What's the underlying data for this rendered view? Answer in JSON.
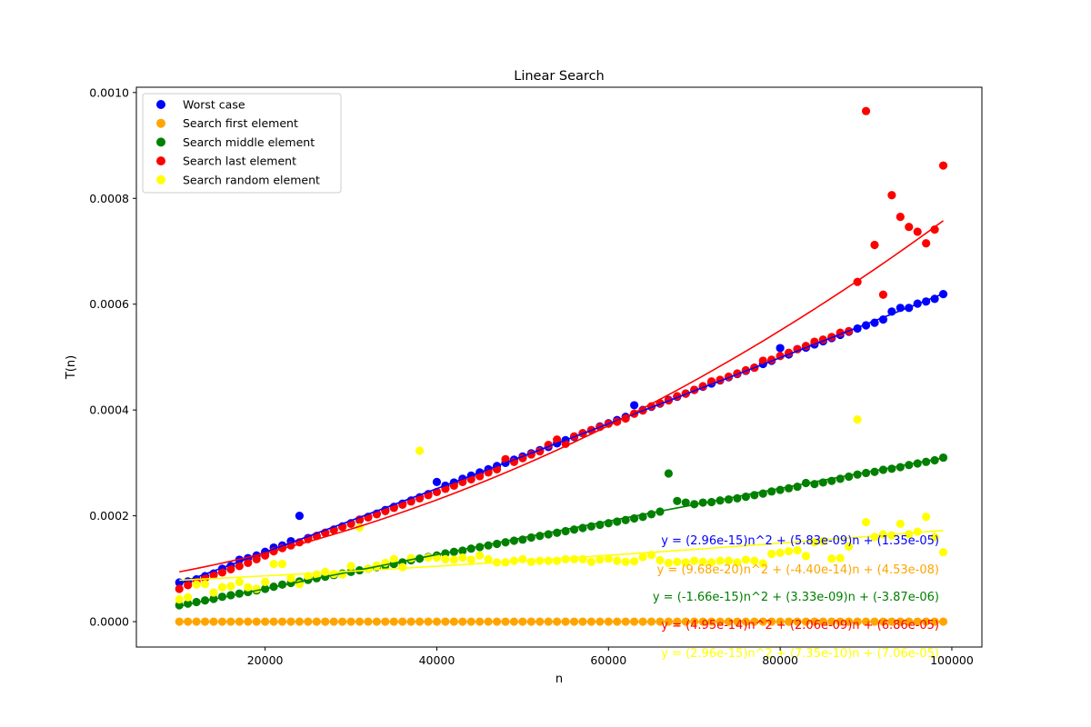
{
  "chart_data": {
    "type": "scatter",
    "title": "Linear Search",
    "xlabel": "n",
    "ylabel": "T(n)",
    "xlim": [
      5000,
      103500
    ],
    "ylim": [
      -4.8e-05,
      0.00101
    ],
    "xticks": [
      20000,
      40000,
      60000,
      80000,
      100000
    ],
    "yticks": [
      0.0,
      0.0002,
      0.0004,
      0.0006,
      0.0008,
      0.001
    ],
    "xtick_labels": [
      "20000",
      "40000",
      "60000",
      "80000",
      "100000"
    ],
    "ytick_labels": [
      "0.0000",
      "0.0002",
      "0.0004",
      "0.0006",
      "0.0008",
      "0.0010"
    ],
    "grid": false,
    "legend_position": "top-left",
    "x": [
      10000,
      11000,
      12000,
      13000,
      14000,
      15000,
      16000,
      17000,
      18000,
      19000,
      20000,
      21000,
      22000,
      23000,
      24000,
      25000,
      26000,
      27000,
      28000,
      29000,
      30000,
      31000,
      32000,
      33000,
      34000,
      35000,
      36000,
      37000,
      38000,
      39000,
      40000,
      41000,
      42000,
      43000,
      44000,
      45000,
      46000,
      47000,
      48000,
      49000,
      50000,
      51000,
      52000,
      53000,
      54000,
      55000,
      56000,
      57000,
      58000,
      59000,
      60000,
      61000,
      62000,
      63000,
      64000,
      65000,
      66000,
      67000,
      68000,
      69000,
      70000,
      71000,
      72000,
      73000,
      74000,
      75000,
      76000,
      77000,
      78000,
      79000,
      80000,
      81000,
      82000,
      83000,
      84000,
      85000,
      86000,
      87000,
      88000,
      89000,
      90000,
      91000,
      92000,
      93000,
      94000,
      95000,
      96000,
      97000,
      98000,
      99000
    ],
    "series": [
      {
        "name": "Worst case",
        "color": "#0000ff",
        "values": [
          7.4e-05,
          7.6e-05,
          8e-05,
          8.6e-05,
          9.1e-05,
          0.0001,
          0.000105,
          0.000117,
          0.00012,
          0.000125,
          0.000132,
          0.00014,
          0.000144,
          0.000152,
          0.0002,
          0.000158,
          0.000162,
          0.000168,
          0.000174,
          0.00018,
          0.000186,
          0.000192,
          0.000198,
          0.000204,
          0.000211,
          0.000217,
          0.000223,
          0.000229,
          0.000235,
          0.000241,
          0.000264,
          0.000257,
          0.000263,
          0.00027,
          0.000276,
          0.000282,
          0.000288,
          0.000294,
          0.0003,
          0.000306,
          0.000312,
          0.000318,
          0.000324,
          0.00033,
          0.000337,
          0.000343,
          0.000349,
          0.000356,
          0.000362,
          0.000369,
          0.000375,
          0.000381,
          0.000387,
          0.000409,
          0.0004,
          0.000406,
          0.000412,
          0.000419,
          0.000425,
          0.000431,
          0.000438,
          0.000444,
          0.00045,
          0.000456,
          0.000462,
          0.000468,
          0.000474,
          0.00048,
          0.000487,
          0.000493,
          0.000517,
          0.000505,
          0.000515,
          0.000518,
          0.000524,
          0.00053,
          0.000536,
          0.000542,
          0.000548,
          0.000554,
          0.00056,
          0.000565,
          0.000571,
          0.000586,
          0.000593,
          0.000593,
          0.000601,
          0.000605,
          0.00061,
          0.000619
        ],
        "fit_label": "y = (2.96e-15)n^2 + (5.83e-09)n + (1.35e-05)",
        "fit": [
          2.96e-15,
          5.83e-09,
          1.35e-05
        ]
      },
      {
        "name": "Search first element",
        "color": "#ffa500",
        "values": [
          0.0,
          0.0,
          0.0,
          0.0,
          0.0,
          0.0,
          0.0,
          0.0,
          0.0,
          0.0,
          0.0,
          0.0,
          0.0,
          0.0,
          0.0,
          0.0,
          0.0,
          0.0,
          0.0,
          0.0,
          0.0,
          0.0,
          0.0,
          0.0,
          0.0,
          0.0,
          0.0,
          0.0,
          0.0,
          0.0,
          0.0,
          0.0,
          0.0,
          0.0,
          0.0,
          0.0,
          0.0,
          0.0,
          0.0,
          0.0,
          0.0,
          0.0,
          0.0,
          0.0,
          0.0,
          0.0,
          0.0,
          0.0,
          0.0,
          0.0,
          0.0,
          0.0,
          0.0,
          0.0,
          0.0,
          0.0,
          0.0,
          0.0,
          0.0,
          0.0,
          0.0,
          0.0,
          0.0,
          0.0,
          0.0,
          0.0,
          0.0,
          0.0,
          0.0,
          0.0,
          0.0,
          0.0,
          0.0,
          0.0,
          0.0,
          0.0,
          0.0,
          0.0,
          0.0,
          0.0,
          0.0,
          0.0,
          0.0,
          0.0,
          0.0,
          0.0,
          0.0,
          0.0,
          0.0,
          0.0
        ],
        "fit_label": "y = (9.68e-20)n^2 + (-4.40e-14)n + (4.53e-08)",
        "fit": [
          9.68e-20,
          -4.4e-14,
          4.53e-08
        ]
      },
      {
        "name": "Search middle element",
        "color": "#008000",
        "values": [
          3.1e-05,
          3.4e-05,
          3.7e-05,
          4e-05,
          4.3e-05,
          4.7e-05,
          5e-05,
          5.3e-05,
          5.6e-05,
          5.9e-05,
          6.2e-05,
          6.6e-05,
          7e-05,
          7.3e-05,
          7.6e-05,
          7.9e-05,
          8.2e-05,
          8.5e-05,
          8.8e-05,
          9.1e-05,
          9.4e-05,
          9.7e-05,
          0.0001,
          0.000103,
          0.000106,
          0.000109,
          0.000112,
          0.000116,
          0.000119,
          0.000122,
          0.000125,
          0.000129,
          0.000132,
          0.000134,
          0.000138,
          0.000141,
          0.000144,
          0.000147,
          0.00015,
          0.000153,
          0.000155,
          0.000159,
          0.000162,
          0.000165,
          0.000168,
          0.000171,
          0.000174,
          0.000177,
          0.00018,
          0.000183,
          0.000186,
          0.000189,
          0.000192,
          0.000195,
          0.000198,
          0.000203,
          0.000208,
          0.00028,
          0.000228,
          0.000225,
          0.000222,
          0.000225,
          0.000226,
          0.000229,
          0.000231,
          0.000233,
          0.000236,
          0.000239,
          0.000242,
          0.000246,
          0.000249,
          0.000252,
          0.000255,
          0.000262,
          0.00026,
          0.000263,
          0.000266,
          0.00027,
          0.000274,
          0.000278,
          0.000281,
          0.000283,
          0.000287,
          0.000289,
          0.000292,
          0.000296,
          0.000299,
          0.000302,
          0.000305,
          0.00031
        ],
        "fit_label": "y = (-1.66e-15)n^2 + (3.33e-09)n + (-3.87e-06)",
        "fit": [
          -1.66e-15,
          3.33e-09,
          -3.87e-06
        ]
      },
      {
        "name": "Search last element",
        "color": "#ff0000",
        "values": [
          6.2e-05,
          6.9e-05,
          7.6e-05,
          8.2e-05,
          8.8e-05,
          9.3e-05,
          9.9e-05,
          0.000105,
          0.000111,
          0.000118,
          0.000125,
          0.000133,
          0.000139,
          0.000144,
          0.00015,
          0.000156,
          0.000162,
          0.000168,
          0.000173,
          0.000179,
          0.000185,
          0.000193,
          0.000197,
          0.000203,
          0.000209,
          0.000215,
          0.000221,
          0.000227,
          0.000233,
          0.000239,
          0.000245,
          0.000251,
          0.000257,
          0.000264,
          0.000269,
          0.000275,
          0.000282,
          0.000288,
          0.000307,
          0.000302,
          0.000309,
          0.000316,
          0.000322,
          0.000334,
          0.000344,
          0.000336,
          0.00035,
          0.000356,
          0.000362,
          0.000368,
          0.000374,
          0.000378,
          0.000384,
          0.000393,
          0.000399,
          0.000407,
          0.000413,
          0.000418,
          0.000426,
          0.000431,
          0.000438,
          0.000445,
          0.000454,
          0.000457,
          0.000463,
          0.000469,
          0.000475,
          0.00048,
          0.000493,
          0.000495,
          0.000502,
          0.000508,
          0.000515,
          0.000521,
          0.000529,
          0.000533,
          0.000538,
          0.000546,
          0.000549,
          0.000642,
          0.000965,
          0.000712,
          0.000618,
          0.000806,
          0.000765,
          0.000746,
          0.000737,
          0.000715,
          0.000741,
          0.000862
        ],
        "fit_label": "y = (4.95e-14)n^2 + (2.06e-09)n + (6.86e-05)",
        "fit": [
          4.95e-14,
          2.06e-09,
          6.86e-05
        ]
      },
      {
        "name": "Search random element",
        "color": "#ffff00",
        "values": [
          4.2e-05,
          4.6e-05,
          7e-05,
          7.1e-05,
          5.5e-05,
          6.5e-05,
          6.7e-05,
          7.5e-05,
          6.5e-05,
          6.2e-05,
          7.5e-05,
          0.000109,
          0.000109,
          8.2e-05,
          7.1e-05,
          8.6e-05,
          8.9e-05,
          9.4e-05,
          9e-05,
          8.9e-05,
          0.000105,
          0.000178,
          0.0001,
          0.000106,
          0.000111,
          0.000118,
          0.000103,
          0.00012,
          0.000323,
          0.000121,
          0.000121,
          0.000118,
          0.000117,
          0.000121,
          0.000117,
          0.000125,
          0.000118,
          0.000112,
          0.000112,
          0.000115,
          0.000118,
          0.000113,
          0.000115,
          0.000115,
          0.000115,
          0.000118,
          0.000118,
          0.000118,
          0.000113,
          0.000117,
          0.000119,
          0.000115,
          0.000113,
          0.000114,
          0.000122,
          0.000126,
          0.000116,
          0.000111,
          0.000113,
          0.000112,
          0.000115,
          0.000113,
          0.000112,
          0.000115,
          0.000115,
          0.000112,
          0.000117,
          0.000115,
          0.00011,
          0.000128,
          0.00013,
          0.000133,
          0.000135,
          0.000124,
          0.00015,
          0.000152,
          0.000119,
          0.00012,
          0.000142,
          0.000382,
          0.000188,
          0.00016,
          0.000165,
          0.000163,
          0.000185,
          0.000165,
          0.00017,
          0.000198,
          0.00016,
          0.000131
        ],
        "fit_label": "y = (2.96e-15)n^2 + (7.35e-10)n + (7.06e-05)",
        "fit": [
          2.96e-15,
          7.35e-10,
          7.06e-05
        ]
      }
    ]
  }
}
